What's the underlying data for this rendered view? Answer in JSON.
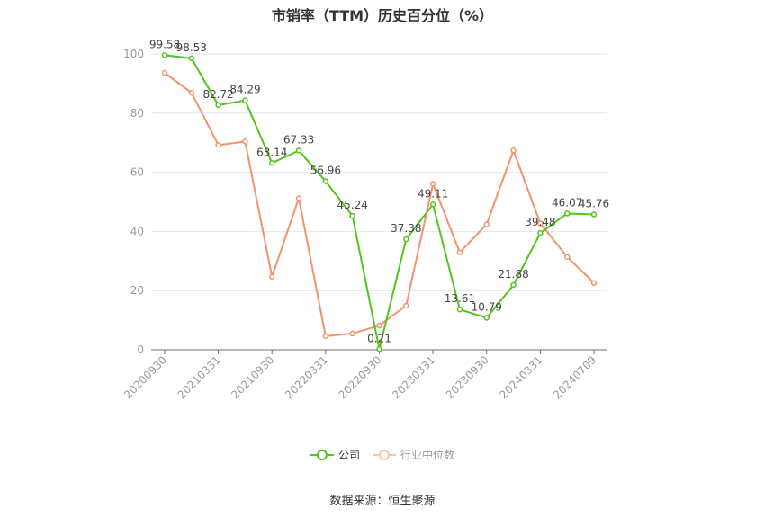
{
  "title": "市销率（TTM）历史百分位（%）",
  "legend": {
    "company": "公司",
    "industry": "行业中位数"
  },
  "source": "数据来源：恒生聚源",
  "colors": {
    "company": "#52c41a",
    "industry": "#f4926a",
    "industry_legend": "#f9c4ae",
    "grid": "#e0e6f1",
    "axis": "#6e7079",
    "tick_label": "#999999",
    "data_label": "#444444"
  },
  "chart_data": {
    "type": "line",
    "title": "市销率（TTM）历史百分位（%）",
    "xlabel": "",
    "ylabel": "",
    "ylim": [
      0,
      100
    ],
    "yticks": [
      0,
      20,
      40,
      60,
      80,
      100
    ],
    "x_tick_labels": [
      "20200930",
      "20210331",
      "20210930",
      "20220331",
      "20220930",
      "20230331",
      "20230930",
      "20240331",
      "20240709"
    ],
    "x": [
      "20200930",
      "20201231",
      "20210331",
      "20210630",
      "20210930",
      "20211231",
      "20220331",
      "20220630",
      "20220930",
      "20221231",
      "20230331",
      "20230630",
      "20230930",
      "20231231",
      "20240331",
      "20240630",
      "20240709"
    ],
    "series": [
      {
        "name": "公司",
        "values": [
          99.58,
          98.53,
          82.72,
          84.29,
          63.14,
          67.33,
          56.96,
          45.24,
          0.21,
          37.38,
          49.11,
          13.61,
          10.79,
          21.88,
          39.48,
          46.07,
          45.76
        ],
        "labels_shown": true
      },
      {
        "name": "行业中位数",
        "values": [
          93.6,
          86.9,
          69.2,
          70.4,
          24.7,
          51.2,
          4.6,
          5.5,
          8.2,
          14.9,
          56.1,
          32.9,
          42.4,
          67.4,
          42.7,
          31.4,
          22.6
        ],
        "labels_shown": false
      }
    ],
    "grid": true,
    "legend_position": "bottom"
  }
}
